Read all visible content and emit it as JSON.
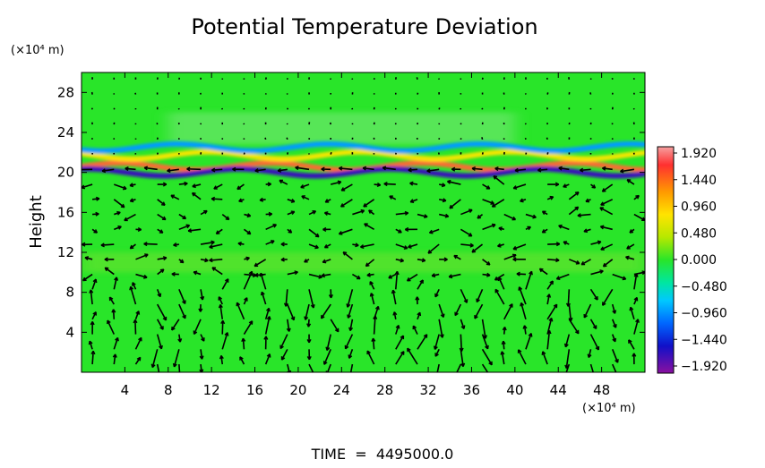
{
  "chart_data": {
    "type": "heatmap",
    "title": "Potential Temperature Deviation",
    "ylabel": "Height",
    "x_unit": "(×10⁴ m)",
    "y_unit": "(×10⁴ m)",
    "xlim": [
      0,
      52
    ],
    "ylim": [
      0,
      30
    ],
    "x_ticks": [
      4,
      8,
      12,
      16,
      20,
      24,
      28,
      32,
      36,
      40,
      44,
      48
    ],
    "y_ticks": [
      4,
      8,
      12,
      16,
      20,
      24,
      28
    ],
    "background_value": 0.0,
    "colorbar": {
      "levels": [
        "1.920",
        "1.440",
        "0.960",
        "0.480",
        "0.000",
        "−0.480",
        "−0.960",
        "−1.440",
        "−1.920"
      ],
      "vmin": -1.92,
      "vmax": 1.92
    },
    "features": [
      {
        "label": "tropopause positive band",
        "y": 20.6,
        "value": 1.6
      },
      {
        "label": "tropopause negative band",
        "y": 20.0,
        "value": -1.6
      },
      {
        "label": "upper positive band",
        "y": 21.7,
        "value": 0.9
      },
      {
        "label": "upper negative band",
        "y": 22.5,
        "value": -0.7
      }
    ],
    "vector_field": "wind arrows overlay",
    "footer": "TIME  =  4495000.0"
  },
  "colors": {
    "background_field": "#29e529",
    "arrows": "#000000"
  }
}
